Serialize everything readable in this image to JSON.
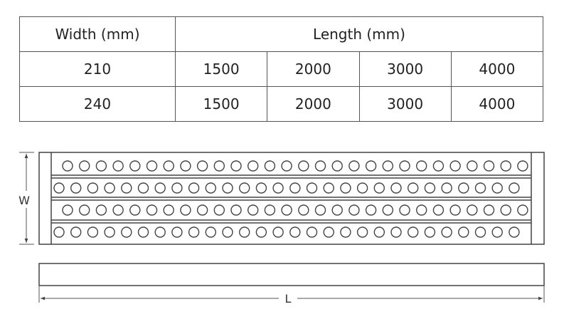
{
  "table": {
    "headers": {
      "width": "Width (mm)",
      "length": "Length (mm)"
    },
    "rows": [
      {
        "width": "210",
        "lengths": [
          "1500",
          "2000",
          "3000",
          "4000"
        ]
      },
      {
        "width": "240",
        "lengths": [
          "1500",
          "2000",
          "3000",
          "4000"
        ]
      }
    ]
  },
  "drawing": {
    "width_label": "W",
    "length_label": "L",
    "led_rows": 4,
    "leds_per_row": 28,
    "line_color": "#444444"
  }
}
